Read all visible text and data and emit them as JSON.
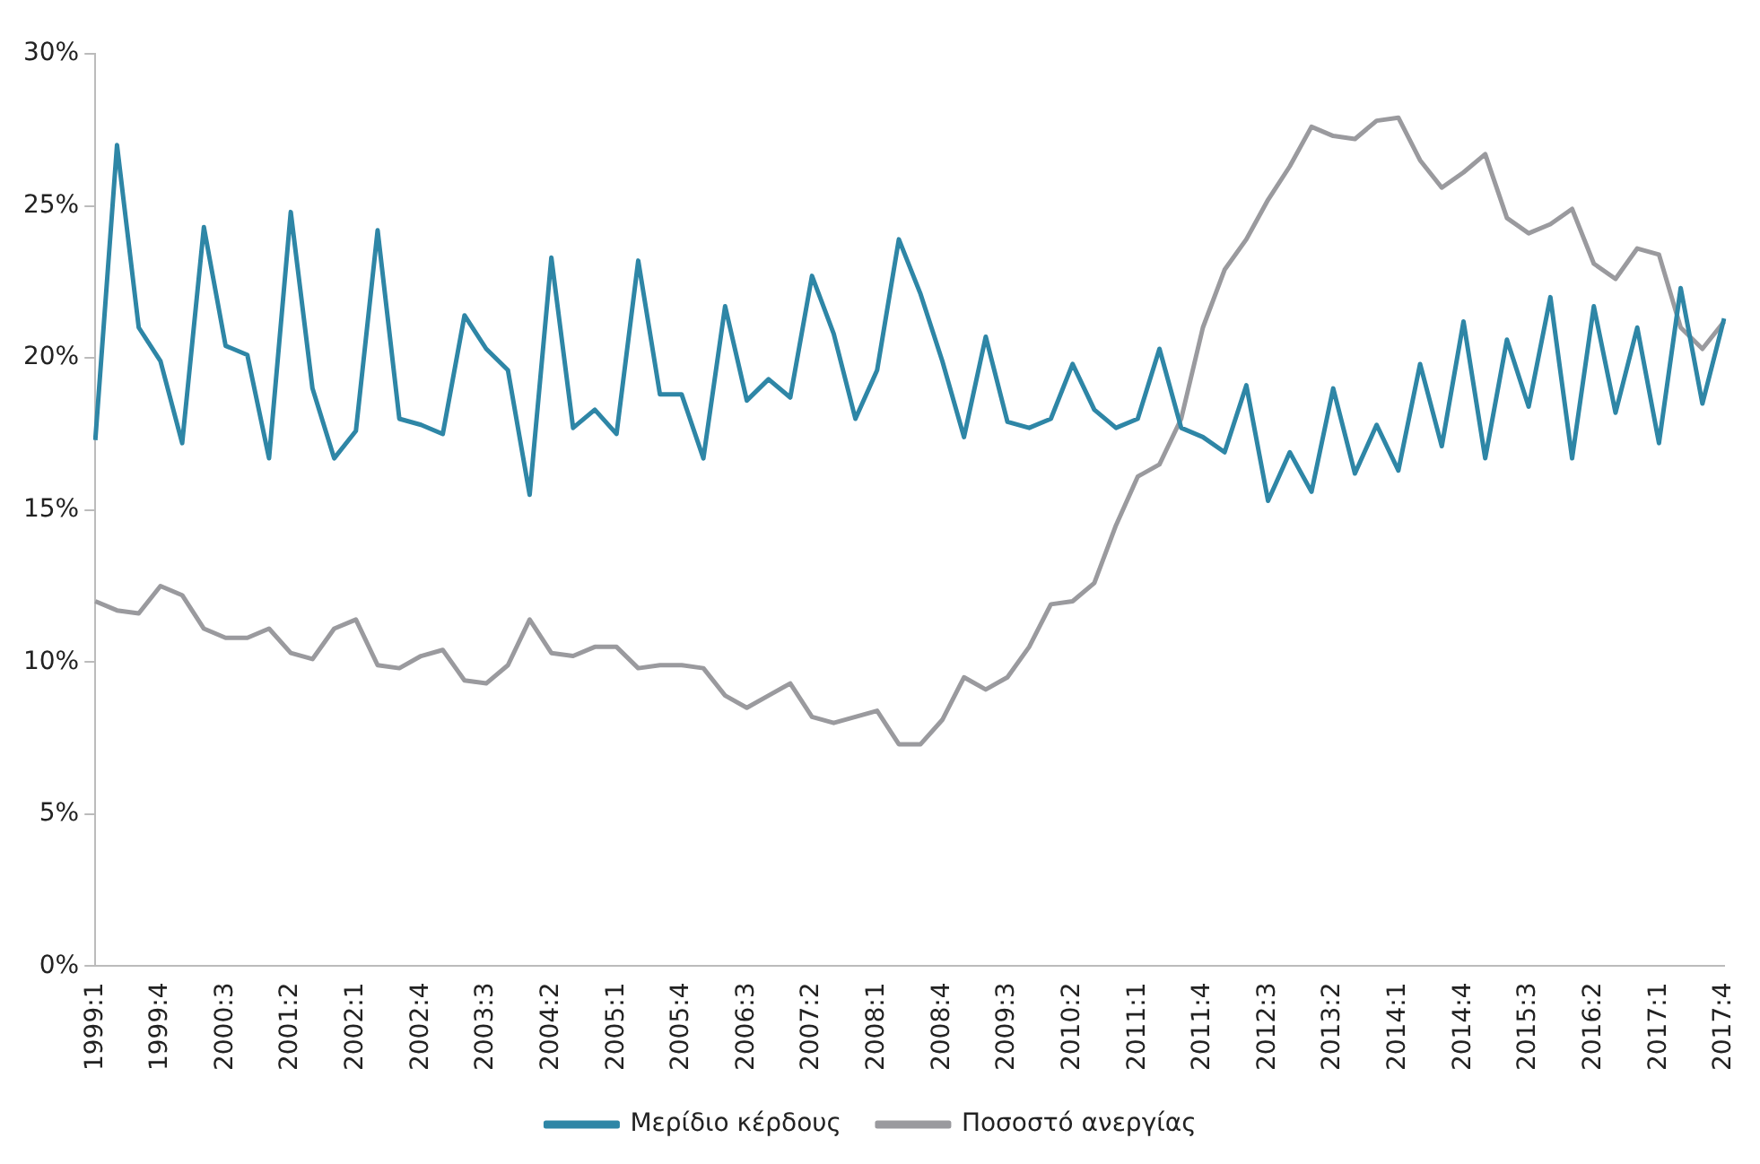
{
  "chart_data": {
    "type": "line",
    "categories": [
      "1999:1",
      null,
      null,
      "1999:4",
      null,
      null,
      "2000:3",
      null,
      null,
      "2001:2",
      null,
      null,
      "2002:1",
      null,
      null,
      "2002:4",
      null,
      null,
      "2003:3",
      null,
      null,
      "2004:2",
      null,
      null,
      "2005:1",
      null,
      null,
      "2005:4",
      null,
      null,
      "2006:3",
      null,
      null,
      "2007:2",
      null,
      null,
      "2008:1",
      null,
      null,
      "2008:4",
      null,
      null,
      "2009:3",
      null,
      null,
      "2010:2",
      null,
      null,
      "2011:1",
      null,
      null,
      "2011:4",
      null,
      null,
      "2012:3",
      null,
      null,
      "2013:2",
      null,
      null,
      "2014:1",
      null,
      null,
      "2014:4",
      null,
      null,
      "2015:3",
      null,
      null,
      "2016:2",
      null,
      null,
      "2017:1",
      null,
      null,
      "2017:4"
    ],
    "series": [
      {
        "name": "Μερίδιο κέρδους",
        "color": "#2e86a6",
        "values": [
          17.3,
          27.0,
          21.0,
          19.9,
          17.2,
          24.3,
          20.4,
          20.1,
          16.7,
          24.8,
          19.0,
          16.7,
          17.6,
          24.2,
          18.0,
          17.8,
          17.5,
          21.4,
          20.3,
          19.6,
          15.5,
          23.3,
          17.7,
          18.3,
          17.5,
          23.2,
          18.8,
          18.8,
          16.7,
          21.7,
          18.6,
          19.3,
          18.7,
          22.7,
          20.8,
          18.0,
          19.6,
          23.9,
          22.1,
          19.9,
          17.4,
          20.7,
          17.9,
          17.7,
          18.0,
          19.8,
          18.3,
          17.7,
          18.0,
          20.3,
          17.7,
          17.4,
          16.9,
          19.1,
          15.3,
          16.9,
          15.6,
          19.0,
          16.2,
          17.8,
          16.3,
          19.8,
          17.1,
          21.2,
          16.7,
          20.6,
          18.4,
          22.0,
          16.7,
          21.7,
          18.2,
          21.0,
          17.2,
          22.3,
          18.5,
          21.3
        ]
      },
      {
        "name": "Ποσοστό ανεργίας",
        "color": "#9a9a9e",
        "values": [
          12.0,
          11.7,
          11.6,
          12.5,
          12.2,
          11.1,
          10.8,
          10.8,
          11.1,
          10.3,
          10.1,
          11.1,
          11.4,
          9.9,
          9.8,
          10.2,
          10.4,
          9.4,
          9.3,
          9.9,
          11.4,
          10.3,
          10.2,
          10.5,
          10.5,
          9.8,
          9.9,
          9.9,
          9.8,
          8.9,
          8.5,
          8.9,
          9.3,
          8.2,
          8.0,
          8.2,
          8.4,
          7.3,
          7.3,
          8.1,
          9.5,
          9.1,
          9.5,
          10.5,
          11.9,
          12.0,
          12.6,
          14.5,
          16.1,
          16.5,
          18.0,
          21.0,
          22.9,
          23.9,
          25.2,
          26.3,
          27.6,
          27.3,
          27.2,
          27.8,
          27.9,
          26.5,
          25.6,
          26.1,
          26.7,
          24.6,
          24.1,
          24.4,
          24.9,
          23.1,
          22.6,
          23.6,
          23.4,
          21.0,
          20.3,
          21.2
        ]
      }
    ],
    "ylim": [
      0,
      30
    ],
    "yticks": [
      {
        "value": 0,
        "label": "0%"
      },
      {
        "value": 5,
        "label": "5%"
      },
      {
        "value": 10,
        "label": "10%"
      },
      {
        "value": 15,
        "label": "15%"
      },
      {
        "value": 20,
        "label": "20%"
      },
      {
        "value": 25,
        "label": "25%"
      },
      {
        "value": 30,
        "label": "30%"
      }
    ],
    "grid": false,
    "legend": "bottom",
    "marker": "none",
    "line_style": "solid"
  }
}
